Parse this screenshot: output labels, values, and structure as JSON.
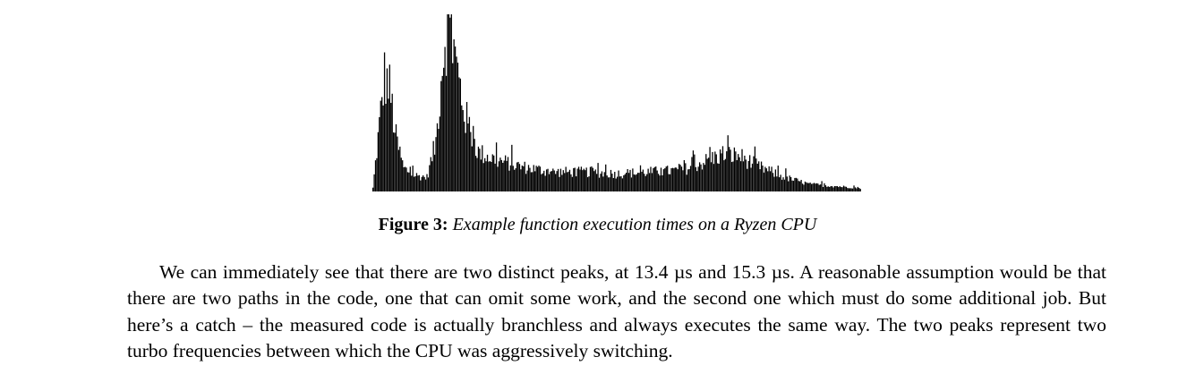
{
  "figure": {
    "label": "Figure 3:",
    "caption": "Example function execution times on a Ryzen CPU"
  },
  "paragraph": {
    "text": "We can immediately see that there are two distinct peaks, at 13.4 µs and 15.3 µs. A reasonable assumption would be that there are two paths in the code, one that can omit some work, and the second one which must do some additional job. But here’s a catch – the measured code is actually branchless and always executes the same way. The two peaks represent two turbo frequencies between which the CPU was aggressively switching."
  },
  "chart_data": {
    "type": "bar",
    "title": "",
    "xlabel": "",
    "ylabel": "",
    "axes_visible": false,
    "grid": false,
    "bin_count": 380,
    "ylim": [
      0,
      100
    ],
    "bar_color": "#000000",
    "envelope": [
      {
        "x": 0,
        "y": 2
      },
      {
        "x": 4,
        "y": 30
      },
      {
        "x": 9,
        "y": 65
      },
      {
        "x": 13,
        "y": 58
      },
      {
        "x": 18,
        "y": 30
      },
      {
        "x": 24,
        "y": 13
      },
      {
        "x": 33,
        "y": 9
      },
      {
        "x": 42,
        "y": 8
      },
      {
        "x": 49,
        "y": 28
      },
      {
        "x": 55,
        "y": 82
      },
      {
        "x": 59,
        "y": 98
      },
      {
        "x": 65,
        "y": 70
      },
      {
        "x": 72,
        "y": 42
      },
      {
        "x": 82,
        "y": 22
      },
      {
        "x": 95,
        "y": 18
      },
      {
        "x": 115,
        "y": 14
      },
      {
        "x": 140,
        "y": 11
      },
      {
        "x": 165,
        "y": 11
      },
      {
        "x": 190,
        "y": 10
      },
      {
        "x": 215,
        "y": 11
      },
      {
        "x": 240,
        "y": 12
      },
      {
        "x": 255,
        "y": 16
      },
      {
        "x": 272,
        "y": 21
      },
      {
        "x": 285,
        "y": 20
      },
      {
        "x": 300,
        "y": 14
      },
      {
        "x": 320,
        "y": 8
      },
      {
        "x": 340,
        "y": 4
      },
      {
        "x": 360,
        "y": 3
      },
      {
        "x": 379,
        "y": 2
      }
    ],
    "noise_amplitude": 0.28
  }
}
